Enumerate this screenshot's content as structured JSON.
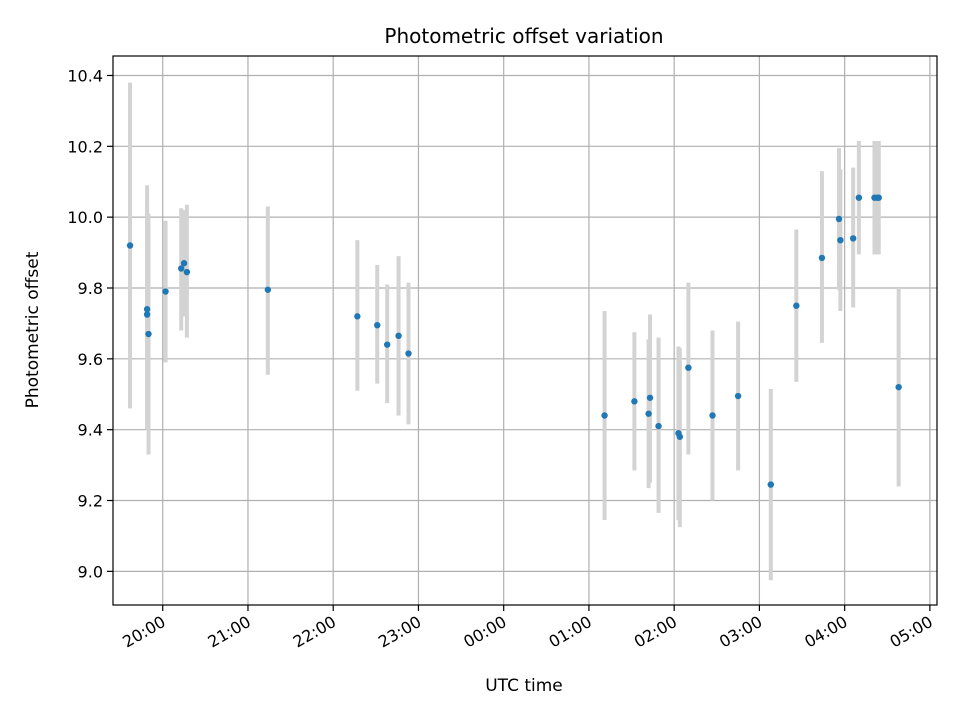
{
  "chart_data": {
    "type": "scatter",
    "title": "Photometric offset variation",
    "xlabel": "UTC time",
    "ylabel": "Photometric offset",
    "grid": true,
    "x_ticks": [
      "20:00",
      "21:00",
      "22:00",
      "23:00",
      "00:00",
      "01:00",
      "02:00",
      "03:00",
      "04:00",
      "05:00"
    ],
    "y_ticks": [
      "9.0",
      "9.2",
      "9.4",
      "9.6",
      "9.8",
      "10.0",
      "10.2",
      "10.4"
    ],
    "xlim": [
      "19:25",
      "05:05"
    ],
    "ylim": [
      8.905,
      10.455
    ],
    "marker_color": "#1f77b4",
    "errorbar_color": "#d3d3d3",
    "points": [
      {
        "t": "19:37",
        "y": 9.92,
        "lo": 9.46,
        "hi": 10.38
      },
      {
        "t": "19:49",
        "y": 9.74,
        "lo": 9.4,
        "hi": 10.09
      },
      {
        "t": "19:49",
        "y": 9.725,
        "lo": 9.42,
        "hi": 10.05
      },
      {
        "t": "19:50",
        "y": 9.67,
        "lo": 9.33,
        "hi": 10.01
      },
      {
        "t": "20:02",
        "y": 9.79,
        "lo": 9.59,
        "hi": 9.99
      },
      {
        "t": "20:13",
        "y": 9.855,
        "lo": 9.68,
        "hi": 10.025
      },
      {
        "t": "20:15",
        "y": 9.87,
        "lo": 9.72,
        "hi": 10.02
      },
      {
        "t": "20:17",
        "y": 9.845,
        "lo": 9.66,
        "hi": 10.035
      },
      {
        "t": "21:14",
        "y": 9.795,
        "lo": 9.555,
        "hi": 10.03
      },
      {
        "t": "22:17",
        "y": 9.72,
        "lo": 9.51,
        "hi": 9.935
      },
      {
        "t": "22:31",
        "y": 9.695,
        "lo": 9.53,
        "hi": 9.865
      },
      {
        "t": "22:38",
        "y": 9.64,
        "lo": 9.475,
        "hi": 9.81
      },
      {
        "t": "22:46",
        "y": 9.665,
        "lo": 9.44,
        "hi": 9.89
      },
      {
        "t": "22:53",
        "y": 9.615,
        "lo": 9.415,
        "hi": 9.815
      },
      {
        "t": "01:11",
        "y": 9.44,
        "lo": 9.145,
        "hi": 9.735
      },
      {
        "t": "01:32",
        "y": 9.48,
        "lo": 9.285,
        "hi": 9.675
      },
      {
        "t": "01:42",
        "y": 9.445,
        "lo": 9.235,
        "hi": 9.655
      },
      {
        "t": "01:43",
        "y": 9.49,
        "lo": 9.25,
        "hi": 9.725
      },
      {
        "t": "01:49",
        "y": 9.41,
        "lo": 9.165,
        "hi": 9.66
      },
      {
        "t": "02:03",
        "y": 9.39,
        "lo": 9.145,
        "hi": 9.635
      },
      {
        "t": "02:04",
        "y": 9.38,
        "lo": 9.125,
        "hi": 9.63
      },
      {
        "t": "02:10",
        "y": 9.575,
        "lo": 9.33,
        "hi": 9.815
      },
      {
        "t": "02:27",
        "y": 9.44,
        "lo": 9.2,
        "hi": 9.68
      },
      {
        "t": "02:45",
        "y": 9.495,
        "lo": 9.285,
        "hi": 9.705
      },
      {
        "t": "03:08",
        "y": 9.245,
        "lo": 8.975,
        "hi": 9.515
      },
      {
        "t": "03:26",
        "y": 9.75,
        "lo": 9.535,
        "hi": 9.965
      },
      {
        "t": "03:44",
        "y": 9.885,
        "lo": 9.645,
        "hi": 10.13
      },
      {
        "t": "03:56",
        "y": 9.995,
        "lo": 9.795,
        "hi": 10.195
      },
      {
        "t": "03:57",
        "y": 9.935,
        "lo": 9.735,
        "hi": 10.135
      },
      {
        "t": "04:06",
        "y": 9.94,
        "lo": 9.745,
        "hi": 10.14
      },
      {
        "t": "04:10",
        "y": 10.055,
        "lo": 9.895,
        "hi": 10.215
      },
      {
        "t": "04:21",
        "y": 10.055,
        "lo": 9.895,
        "hi": 10.215
      },
      {
        "t": "04:23",
        "y": 10.055,
        "lo": 9.895,
        "hi": 10.215
      },
      {
        "t": "04:24",
        "y": 10.055,
        "lo": 9.895,
        "hi": 10.215
      },
      {
        "t": "04:38",
        "y": 9.52,
        "lo": 9.24,
        "hi": 9.8
      }
    ]
  }
}
